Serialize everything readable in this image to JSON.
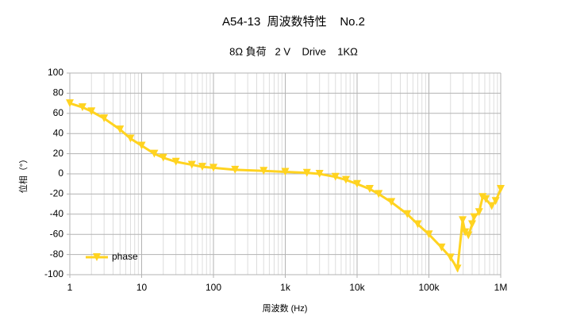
{
  "chart_data": {
    "type": "line",
    "title": "A54-13  周波数特性    No.2",
    "subtitle": "8Ω 負荷   2 V    Drive    1KΩ",
    "x_label": "周波数 (Hz)",
    "y_label": "位相（°）",
    "x_scale": "log",
    "xlim": [
      1,
      1000000
    ],
    "xticks": [
      1,
      10,
      100,
      {
        "value": 1000,
        "label": "1k"
      },
      {
        "value": 10000,
        "label": "10k"
      },
      {
        "value": 100000,
        "label": "100k"
      },
      {
        "value": 1000000,
        "label": "1M"
      }
    ],
    "ylim": [
      -100,
      100
    ],
    "yticks": [
      -100,
      -80,
      -60,
      -40,
      -20,
      0,
      20,
      40,
      60,
      80,
      100
    ],
    "grid": true,
    "legend": "lower left",
    "x": [
      1,
      1.5,
      2,
      3,
      5,
      7,
      10,
      15,
      20,
      30,
      50,
      70,
      100,
      200,
      500,
      1000,
      2000,
      3000,
      5000,
      7000,
      10000,
      15000,
      20000,
      30000,
      50000,
      70000,
      100000,
      150000,
      200000,
      250000,
      295000,
      320000,
      355000,
      400000,
      426000,
      500000,
      560000,
      620000,
      750000,
      850000,
      1000000
    ],
    "series": [
      {
        "name": "phase",
        "color": "#ffd320",
        "values": [
          70,
          66,
          62,
          55,
          44,
          35,
          28,
          20,
          16,
          12,
          9,
          7,
          6,
          4,
          3,
          2,
          1,
          0,
          -3,
          -6,
          -10,
          -15,
          -20,
          -28,
          -40,
          -50,
          -60,
          -73,
          -83,
          -94,
          -46,
          -58,
          -61,
          -50,
          -43,
          -38,
          -23,
          -25,
          -32,
          -27,
          -15
        ]
      }
    ]
  }
}
